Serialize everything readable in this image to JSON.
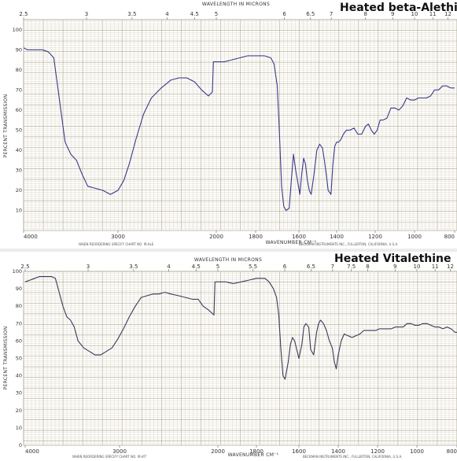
{
  "chart_data": [
    {
      "type": "line",
      "title": "Heated beta-Alethine",
      "top_axis_label": "WAVELENGTH IN MICRONS",
      "top_ticks": [
        "2.5",
        "3",
        "3.5",
        "4",
        "4.5",
        "5",
        "6",
        "6.5",
        "7",
        "8",
        "9",
        "10",
        "11",
        "12"
      ],
      "xlabel": "WAVENUMBER CM⁻¹",
      "ylabel": "PERCENT TRANSMISSION",
      "x_ticks": [
        "4000",
        "3000",
        "2000",
        "1800",
        "1600",
        "1400",
        "1200",
        "1000",
        "800"
      ],
      "y_ticks": [
        "100",
        "90",
        "80",
        "70",
        "60",
        "50",
        "40",
        "30",
        "20",
        "10"
      ],
      "xlim": [
        4000,
        800
      ],
      "ylim": [
        0,
        105
      ],
      "footer_left": "WHEN REORDERING SPECIFY CHART NO. IR-ALE",
      "footer_right": "BECKMAN INSTRUMENTS INC., FULLERTON, CALIFORNIA, U.S.A.",
      "series": [
        {
          "x": [
            4000,
            3960,
            3900,
            3800,
            3740,
            3680,
            3620,
            3560,
            3500,
            3440,
            3380,
            3320,
            3240,
            3160,
            3080,
            3000,
            2940,
            2880,
            2820,
            2740,
            2660,
            2560,
            2460,
            2380,
            2300,
            2220,
            2150,
            2080,
            2040,
            2030,
            2020,
            2000,
            1960,
            1920,
            1880,
            1840,
            1800,
            1760,
            1730,
            1715,
            1700,
            1690,
            1680,
            1670,
            1660,
            1645,
            1635,
            1625,
            1615,
            1605,
            1595,
            1585,
            1575,
            1565,
            1555,
            1545,
            1535,
            1520,
            1505,
            1490,
            1475,
            1465,
            1455,
            1445,
            1430,
            1420,
            1410,
            1400,
            1390,
            1380,
            1365,
            1350,
            1330,
            1310,
            1290,
            1270,
            1250,
            1235,
            1220,
            1205,
            1190,
            1175,
            1160,
            1140,
            1120,
            1100,
            1080,
            1060,
            1040,
            1020,
            1000,
            980,
            960,
            940,
            920,
            900,
            880,
            860,
            840,
            820,
            800
          ],
          "y": [
            91,
            90,
            90,
            90,
            89,
            86,
            65,
            44,
            38,
            35,
            28,
            22,
            21,
            20,
            18,
            20,
            25,
            34,
            45,
            58,
            66,
            71,
            75,
            76,
            76,
            74,
            70,
            67,
            69,
            84,
            84,
            84,
            84,
            85,
            86,
            87,
            87,
            87,
            86,
            83,
            72,
            48,
            22,
            12,
            10,
            11,
            25,
            38,
            30,
            24,
            18,
            28,
            36,
            33,
            25,
            20,
            18,
            28,
            40,
            43,
            41,
            35,
            28,
            20,
            18,
            33,
            42,
            44,
            44,
            45,
            48,
            50,
            50,
            51,
            48,
            48,
            52,
            53,
            50,
            48,
            50,
            55,
            55,
            56,
            61,
            61,
            60,
            62,
            66,
            65,
            65,
            66,
            66,
            66,
            67,
            70,
            70,
            72,
            72,
            71,
            71
          ]
        }
      ]
    },
    {
      "type": "line",
      "title": "Heated Vitalethine",
      "top_axis_label": "WAVELENGTH IN MICRONS",
      "top_ticks": [
        "2.5",
        "3",
        "3.5",
        "4",
        "4.5",
        "5",
        "5.5",
        "6",
        "6.5",
        "7",
        "7.5",
        "8",
        "9",
        "10",
        "11",
        "12"
      ],
      "xlabel": "WAVENUMBER CM⁻¹",
      "ylabel": "PERCENT TRANSMISSION",
      "x_ticks": [
        "4000",
        "3000",
        "2000",
        "1800",
        "1600",
        "1400",
        "1200",
        "1000",
        "800"
      ],
      "y_ticks": [
        "100",
        "90",
        "80",
        "70",
        "60",
        "50",
        "40",
        "30",
        "20",
        "10",
        "0"
      ],
      "xlim": [
        4000,
        800
      ],
      "ylim": [
        0,
        100
      ],
      "footer_left": "WHEN REORDERING SPECIFY CHART NO. IR-VIT",
      "footer_right": "BECKMAN INSTRUMENTS INC., FULLERTON, CALIFORNIA, U.S.A.",
      "series": [
        {
          "x": [
            4000,
            3950,
            3900,
            3850,
            3800,
            3760,
            3720,
            3680,
            3640,
            3600,
            3560,
            3520,
            3480,
            3440,
            3380,
            3320,
            3260,
            3200,
            3140,
            3080,
            3020,
            2960,
            2900,
            2840,
            2780,
            2720,
            2660,
            2600,
            2540,
            2480,
            2400,
            2330,
            2260,
            2200,
            2150,
            2100,
            2060,
            2040,
            2030,
            2000,
            1960,
            1920,
            1880,
            1840,
            1800,
            1780,
            1760,
            1740,
            1720,
            1705,
            1695,
            1685,
            1675,
            1665,
            1650,
            1640,
            1630,
            1620,
            1610,
            1600,
            1585,
            1575,
            1565,
            1550,
            1540,
            1525,
            1510,
            1500,
            1490,
            1475,
            1460,
            1445,
            1430,
            1420,
            1410,
            1400,
            1385,
            1370,
            1350,
            1330,
            1310,
            1290,
            1270,
            1250,
            1230,
            1210,
            1190,
            1170,
            1150,
            1130,
            1110,
            1090,
            1070,
            1050,
            1030,
            1010,
            990,
            970,
            950,
            930,
            910,
            890,
            870,
            850,
            830,
            810,
            800
          ],
          "y": [
            94,
            95,
            96,
            97,
            97,
            97,
            97,
            96,
            88,
            80,
            74,
            72,
            68,
            60,
            56,
            54,
            52,
            52,
            54,
            56,
            61,
            67,
            74,
            80,
            85,
            86,
            87,
            87,
            88,
            87,
            86,
            85,
            84,
            84,
            80,
            78,
            76,
            75,
            94,
            94,
            94,
            93,
            94,
            95,
            96,
            96,
            96,
            94,
            90,
            85,
            75,
            55,
            40,
            38,
            48,
            58,
            62,
            60,
            55,
            50,
            58,
            68,
            70,
            68,
            55,
            52,
            65,
            70,
            72,
            70,
            66,
            60,
            56,
            48,
            44,
            52,
            60,
            64,
            63,
            62,
            63,
            64,
            66,
            66,
            66,
            66,
            67,
            67,
            67,
            67,
            68,
            68,
            68,
            70,
            70,
            69,
            69,
            70,
            70,
            69,
            68,
            68,
            67,
            68,
            67,
            65,
            65
          ]
        }
      ]
    }
  ]
}
